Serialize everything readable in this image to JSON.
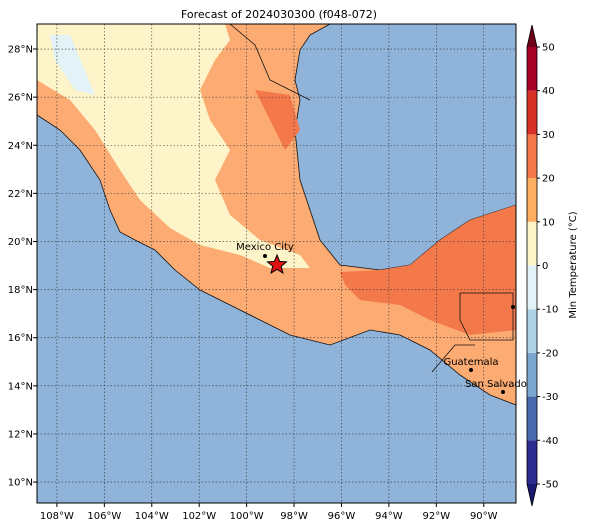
{
  "title": "Forecast of 2024030300 (f048-072)",
  "map": {
    "lon_ticks": [
      {
        "value": -108,
        "label": "108°W"
      },
      {
        "value": -106,
        "label": "106°W"
      },
      {
        "value": -104,
        "label": "104°W"
      },
      {
        "value": -102,
        "label": "102°W"
      },
      {
        "value": -100,
        "label": "100°W"
      },
      {
        "value": -98,
        "label": "98°W"
      },
      {
        "value": -96,
        "label": "96°W"
      },
      {
        "value": -94,
        "label": "94°W"
      },
      {
        "value": -92,
        "label": "92°W"
      },
      {
        "value": -90,
        "label": "90°W"
      }
    ],
    "lat_ticks": [
      {
        "value": 10,
        "label": "10°N"
      },
      {
        "value": 12,
        "label": "12°N"
      },
      {
        "value": 14,
        "label": "14°N"
      },
      {
        "value": 16,
        "label": "16°N"
      },
      {
        "value": 18,
        "label": "18°N"
      },
      {
        "value": 20,
        "label": "20°N"
      },
      {
        "value": 22,
        "label": "22°N"
      },
      {
        "value": 24,
        "label": "24°N"
      },
      {
        "value": 26,
        "label": "26°N"
      },
      {
        "value": 28,
        "label": "28°N"
      }
    ],
    "lonlim": [
      -108.84,
      -88.64
    ],
    "latlim": [
      9.13,
      29.04
    ],
    "cities": [
      "Mexico City",
      "Guatemala",
      "San Salvador"
    ]
  },
  "colorbar": {
    "label": "Min Temperature (°C)",
    "ticks": [
      -50,
      -40,
      -30,
      -20,
      -10,
      0,
      10,
      20,
      30,
      40,
      50
    ],
    "colors": [
      "#2c2c8f",
      "#4a69ad",
      "#7aa6d0",
      "#aed3e6",
      "#e3f2f6",
      "#fdf5c9",
      "#fdae61",
      "#f4794a",
      "#d73027",
      "#a50026"
    ],
    "under_color": "#1a1a70",
    "over_color": "#6e0019"
  }
}
